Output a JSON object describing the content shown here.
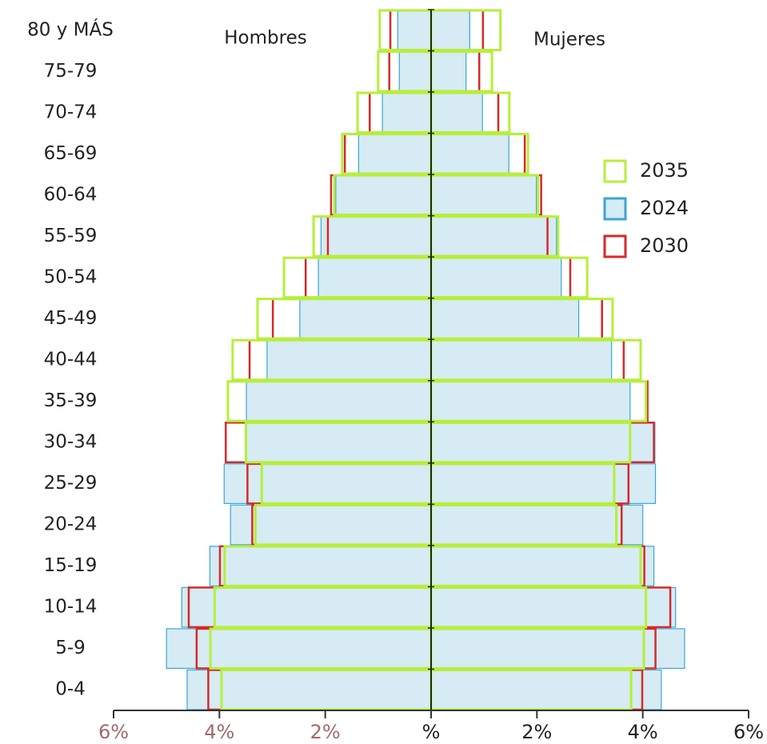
{
  "chart_data": {
    "type": "pyramid",
    "left_label": "Hombres",
    "right_label": "Mujeres",
    "categories": [
      "80 y MÁS",
      "75-79",
      "70-74",
      "65-69",
      "60-64",
      "55-59",
      "50-54",
      "45-49",
      "40-44",
      "35-39",
      "30-34",
      "25-29",
      "20-24",
      "15-19",
      "10-14",
      "5-9",
      "0-4"
    ],
    "series": [
      {
        "name": "2024",
        "color": "#3aa6d8",
        "fill": "#d6ebf3",
        "style": "filled",
        "hombres": [
          -0.63,
          -0.6,
          -0.92,
          -1.37,
          -1.8,
          -2.08,
          -2.13,
          -2.48,
          -3.1,
          -3.49,
          -3.5,
          -3.91,
          -3.79,
          -4.18,
          -4.71,
          -5.0,
          -4.61
        ],
        "mujeres": [
          0.73,
          0.66,
          0.97,
          1.47,
          1.99,
          2.37,
          2.46,
          2.79,
          3.41,
          3.76,
          4.23,
          4.24,
          4.0,
          4.21,
          4.62,
          4.79,
          4.35
        ]
      },
      {
        "name": "2030",
        "color": "#d42a2a",
        "style": "outline",
        "hombres": [
          -0.77,
          -0.79,
          -1.16,
          -1.63,
          -1.89,
          -1.95,
          -2.37,
          -2.99,
          -3.43,
          -3.84,
          -3.88,
          -3.47,
          -3.38,
          -3.99,
          -4.58,
          -4.43,
          -4.21
        ],
        "mujeres": [
          0.98,
          0.91,
          1.27,
          1.77,
          2.08,
          2.2,
          2.63,
          3.23,
          3.64,
          4.09,
          4.21,
          3.73,
          3.6,
          4.03,
          4.52,
          4.24,
          3.99
        ]
      },
      {
        "name": "2035",
        "color": "#b6ef3a",
        "style": "outline",
        "hombres": [
          -0.97,
          -1.0,
          -1.39,
          -1.68,
          -1.83,
          -2.22,
          -2.78,
          -3.28,
          -3.75,
          -3.84,
          -3.5,
          -3.2,
          -3.32,
          -3.9,
          -4.09,
          -4.17,
          -3.96
        ],
        "mujeres": [
          1.31,
          1.15,
          1.48,
          1.83,
          2.02,
          2.4,
          2.95,
          3.43,
          3.96,
          4.06,
          3.76,
          3.46,
          3.5,
          3.96,
          4.06,
          4.02,
          3.78
        ]
      }
    ],
    "legend_order": [
      2,
      0,
      1
    ],
    "xlim": [
      -6,
      6
    ],
    "xticks": [
      {
        "value": -6,
        "label": "6%"
      },
      {
        "value": -4,
        "label": "4%"
      },
      {
        "value": -2,
        "label": "2%"
      },
      {
        "value": 0,
        "label": "%"
      },
      {
        "value": 2,
        "label": "2%"
      },
      {
        "value": 4,
        "label": "4%"
      },
      {
        "value": 6,
        "label": "6%"
      }
    ]
  }
}
